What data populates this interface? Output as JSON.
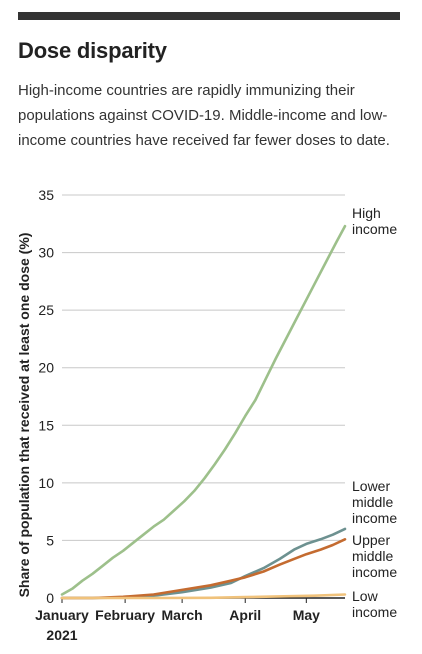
{
  "header": {
    "title": "Dose disparity",
    "subtitle": "High-income countries are rapidly immunizing their populations against COVID-19. Middle-income and low-income countries have received far fewer doses to date."
  },
  "chart_data": {
    "type": "line",
    "ylabel": "Share of population that received at least one dose (%)",
    "xlabel": "",
    "ylim": [
      0,
      35
    ],
    "yticks": [
      0,
      5,
      10,
      15,
      20,
      25,
      30,
      35
    ],
    "xlim": [
      "2021-01-01",
      "2021-05-20"
    ],
    "xticks": [
      {
        "date": "2021-01-01",
        "label": "January",
        "sublabel": "2021"
      },
      {
        "date": "2021-02-01",
        "label": "February",
        "sublabel": ""
      },
      {
        "date": "2021-03-01",
        "label": "March",
        "sublabel": ""
      },
      {
        "date": "2021-04-01",
        "label": "April",
        "sublabel": ""
      },
      {
        "date": "2021-05-01",
        "label": "May",
        "sublabel": ""
      }
    ],
    "grid": true,
    "legend": "direct labels at line ends",
    "series": [
      {
        "name": "High income",
        "label_lines": [
          "High",
          "income"
        ],
        "color": "#9dc08b",
        "points": [
          [
            "2021-01-01",
            0.3
          ],
          [
            "2021-01-06",
            0.8
          ],
          [
            "2021-01-11",
            1.5
          ],
          [
            "2021-01-16",
            2.1
          ],
          [
            "2021-01-21",
            2.8
          ],
          [
            "2021-01-26",
            3.5
          ],
          [
            "2021-01-31",
            4.1
          ],
          [
            "2021-02-05",
            4.8
          ],
          [
            "2021-02-10",
            5.5
          ],
          [
            "2021-02-15",
            6.2
          ],
          [
            "2021-02-20",
            6.8
          ],
          [
            "2021-02-25",
            7.6
          ],
          [
            "2021-03-02",
            8.4
          ],
          [
            "2021-03-07",
            9.3
          ],
          [
            "2021-03-12",
            10.4
          ],
          [
            "2021-03-17",
            11.6
          ],
          [
            "2021-03-22",
            12.9
          ],
          [
            "2021-03-27",
            14.3
          ],
          [
            "2021-04-01",
            15.8
          ],
          [
            "2021-04-06",
            17.2
          ],
          [
            "2021-04-11",
            19.0
          ],
          [
            "2021-04-16",
            20.8
          ],
          [
            "2021-04-21",
            22.5
          ],
          [
            "2021-04-26",
            24.2
          ],
          [
            "2021-05-01",
            25.9
          ],
          [
            "2021-05-06",
            27.6
          ],
          [
            "2021-05-11",
            29.3
          ],
          [
            "2021-05-16",
            31.0
          ],
          [
            "2021-05-20",
            32.3
          ]
        ]
      },
      {
        "name": "Lower middle income",
        "label_lines": [
          "Lower",
          "middle",
          "income"
        ],
        "color": "#6d9190",
        "points": [
          [
            "2021-01-01",
            0.0
          ],
          [
            "2021-01-16",
            0.0
          ],
          [
            "2021-01-31",
            0.05
          ],
          [
            "2021-02-15",
            0.2
          ],
          [
            "2021-03-01",
            0.5
          ],
          [
            "2021-03-15",
            0.9
          ],
          [
            "2021-03-25",
            1.3
          ],
          [
            "2021-04-01",
            1.9
          ],
          [
            "2021-04-10",
            2.6
          ],
          [
            "2021-04-18",
            3.4
          ],
          [
            "2021-04-25",
            4.2
          ],
          [
            "2021-05-01",
            4.7
          ],
          [
            "2021-05-08",
            5.1
          ],
          [
            "2021-05-14",
            5.5
          ],
          [
            "2021-05-20",
            6.0
          ]
        ]
      },
      {
        "name": "Upper middle income",
        "label_lines": [
          "Upper",
          "middle",
          "income"
        ],
        "color": "#c46b30",
        "points": [
          [
            "2021-01-01",
            0.0
          ],
          [
            "2021-01-16",
            0.0
          ],
          [
            "2021-01-31",
            0.1
          ],
          [
            "2021-02-15",
            0.3
          ],
          [
            "2021-03-01",
            0.7
          ],
          [
            "2021-03-15",
            1.1
          ],
          [
            "2021-03-25",
            1.5
          ],
          [
            "2021-04-01",
            1.8
          ],
          [
            "2021-04-10",
            2.3
          ],
          [
            "2021-04-18",
            2.9
          ],
          [
            "2021-04-25",
            3.4
          ],
          [
            "2021-05-01",
            3.8
          ],
          [
            "2021-05-08",
            4.2
          ],
          [
            "2021-05-14",
            4.6
          ],
          [
            "2021-05-20",
            5.1
          ]
        ]
      },
      {
        "name": "Low income",
        "label_lines": [
          "Low",
          "income"
        ],
        "color": "#f0c27b",
        "points": [
          [
            "2021-01-01",
            0.0
          ],
          [
            "2021-02-15",
            0.0
          ],
          [
            "2021-03-15",
            0.02
          ],
          [
            "2021-04-01",
            0.08
          ],
          [
            "2021-04-20",
            0.15
          ],
          [
            "2021-05-05",
            0.2
          ],
          [
            "2021-05-20",
            0.3
          ]
        ]
      }
    ]
  }
}
